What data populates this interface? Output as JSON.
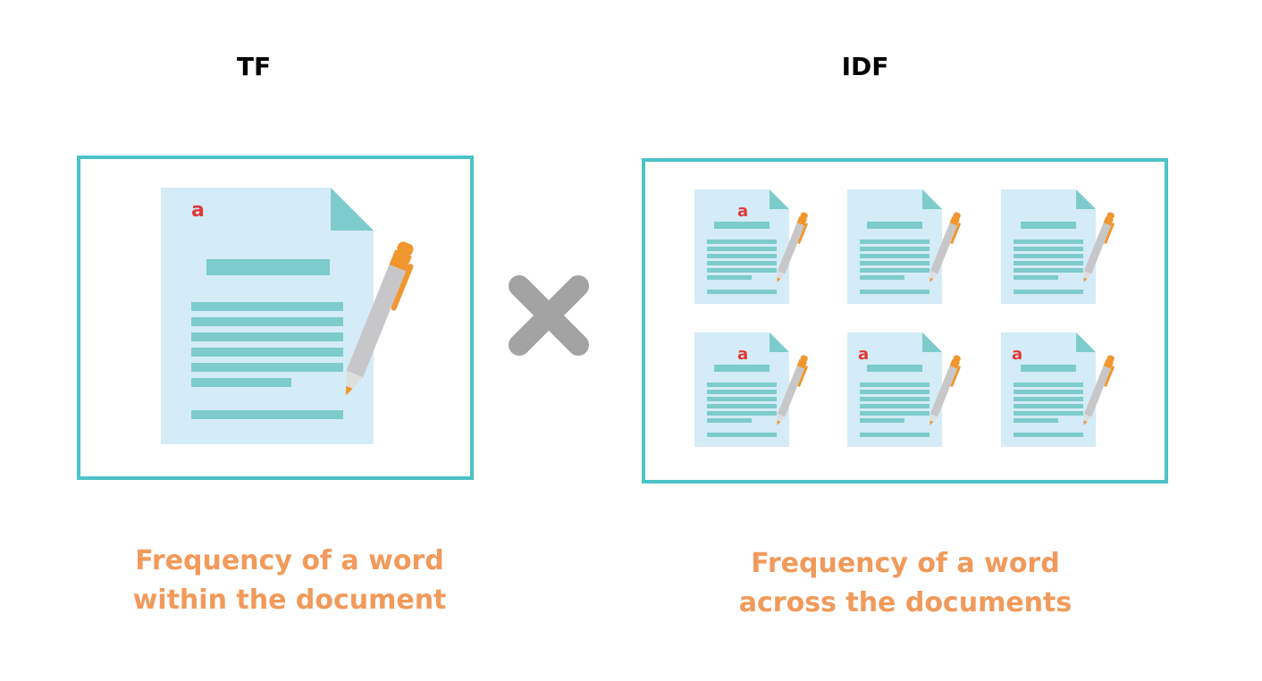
{
  "tf": {
    "title": "TF",
    "caption_line1": "Frequency of a word",
    "caption_line2": "within the document",
    "document_letter": "a"
  },
  "idf": {
    "title": "IDF",
    "caption_line1": "Frequency of a word",
    "caption_line2": "across the documents",
    "documents": [
      {
        "letter": "a"
      },
      {
        "letter": ""
      },
      {
        "letter": ""
      },
      {
        "letter": "a"
      },
      {
        "letter": "a"
      },
      {
        "letter": "a"
      }
    ]
  },
  "operator_icon": "multiply-icon",
  "colors": {
    "panel_border": "#4cc3c6",
    "document_fill": "#d4ecf7",
    "document_fold": "#7dcbcc",
    "text_lines": "#7dcbcc",
    "letter": "#e0393a",
    "pen_body": "#c7c7c9",
    "pen_accent": "#f0962f",
    "caption": "#f19a5b",
    "operator": "#a3a3a3"
  }
}
